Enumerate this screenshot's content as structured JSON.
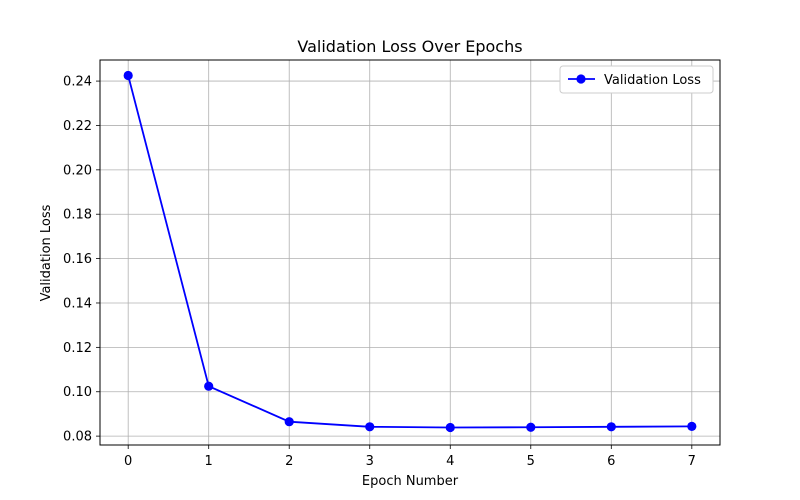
{
  "chart_data": {
    "type": "line",
    "title": "Validation Loss Over Epochs",
    "xlabel": "Epoch Number",
    "ylabel": "Validation Loss",
    "x": [
      0,
      1,
      2,
      3,
      4,
      5,
      6,
      7
    ],
    "series": [
      {
        "name": "Validation Loss",
        "color": "#0000ff",
        "marker": "circle",
        "values": [
          0.2425,
          0.1025,
          0.0865,
          0.0842,
          0.0839,
          0.084,
          0.0842,
          0.0844
        ]
      }
    ],
    "xlim": [
      -0.35,
      7.35
    ],
    "ylim": [
      0.076,
      0.2495
    ],
    "xticks": [
      0,
      1,
      2,
      3,
      4,
      5,
      6,
      7
    ],
    "yticks": [
      0.08,
      0.1,
      0.12,
      0.14,
      0.16,
      0.18,
      0.2,
      0.22,
      0.24
    ],
    "ytick_labels": [
      "0.08",
      "0.10",
      "0.12",
      "0.14",
      "0.16",
      "0.18",
      "0.20",
      "0.22",
      "0.24"
    ],
    "grid": true,
    "legend_position": "top-right"
  }
}
